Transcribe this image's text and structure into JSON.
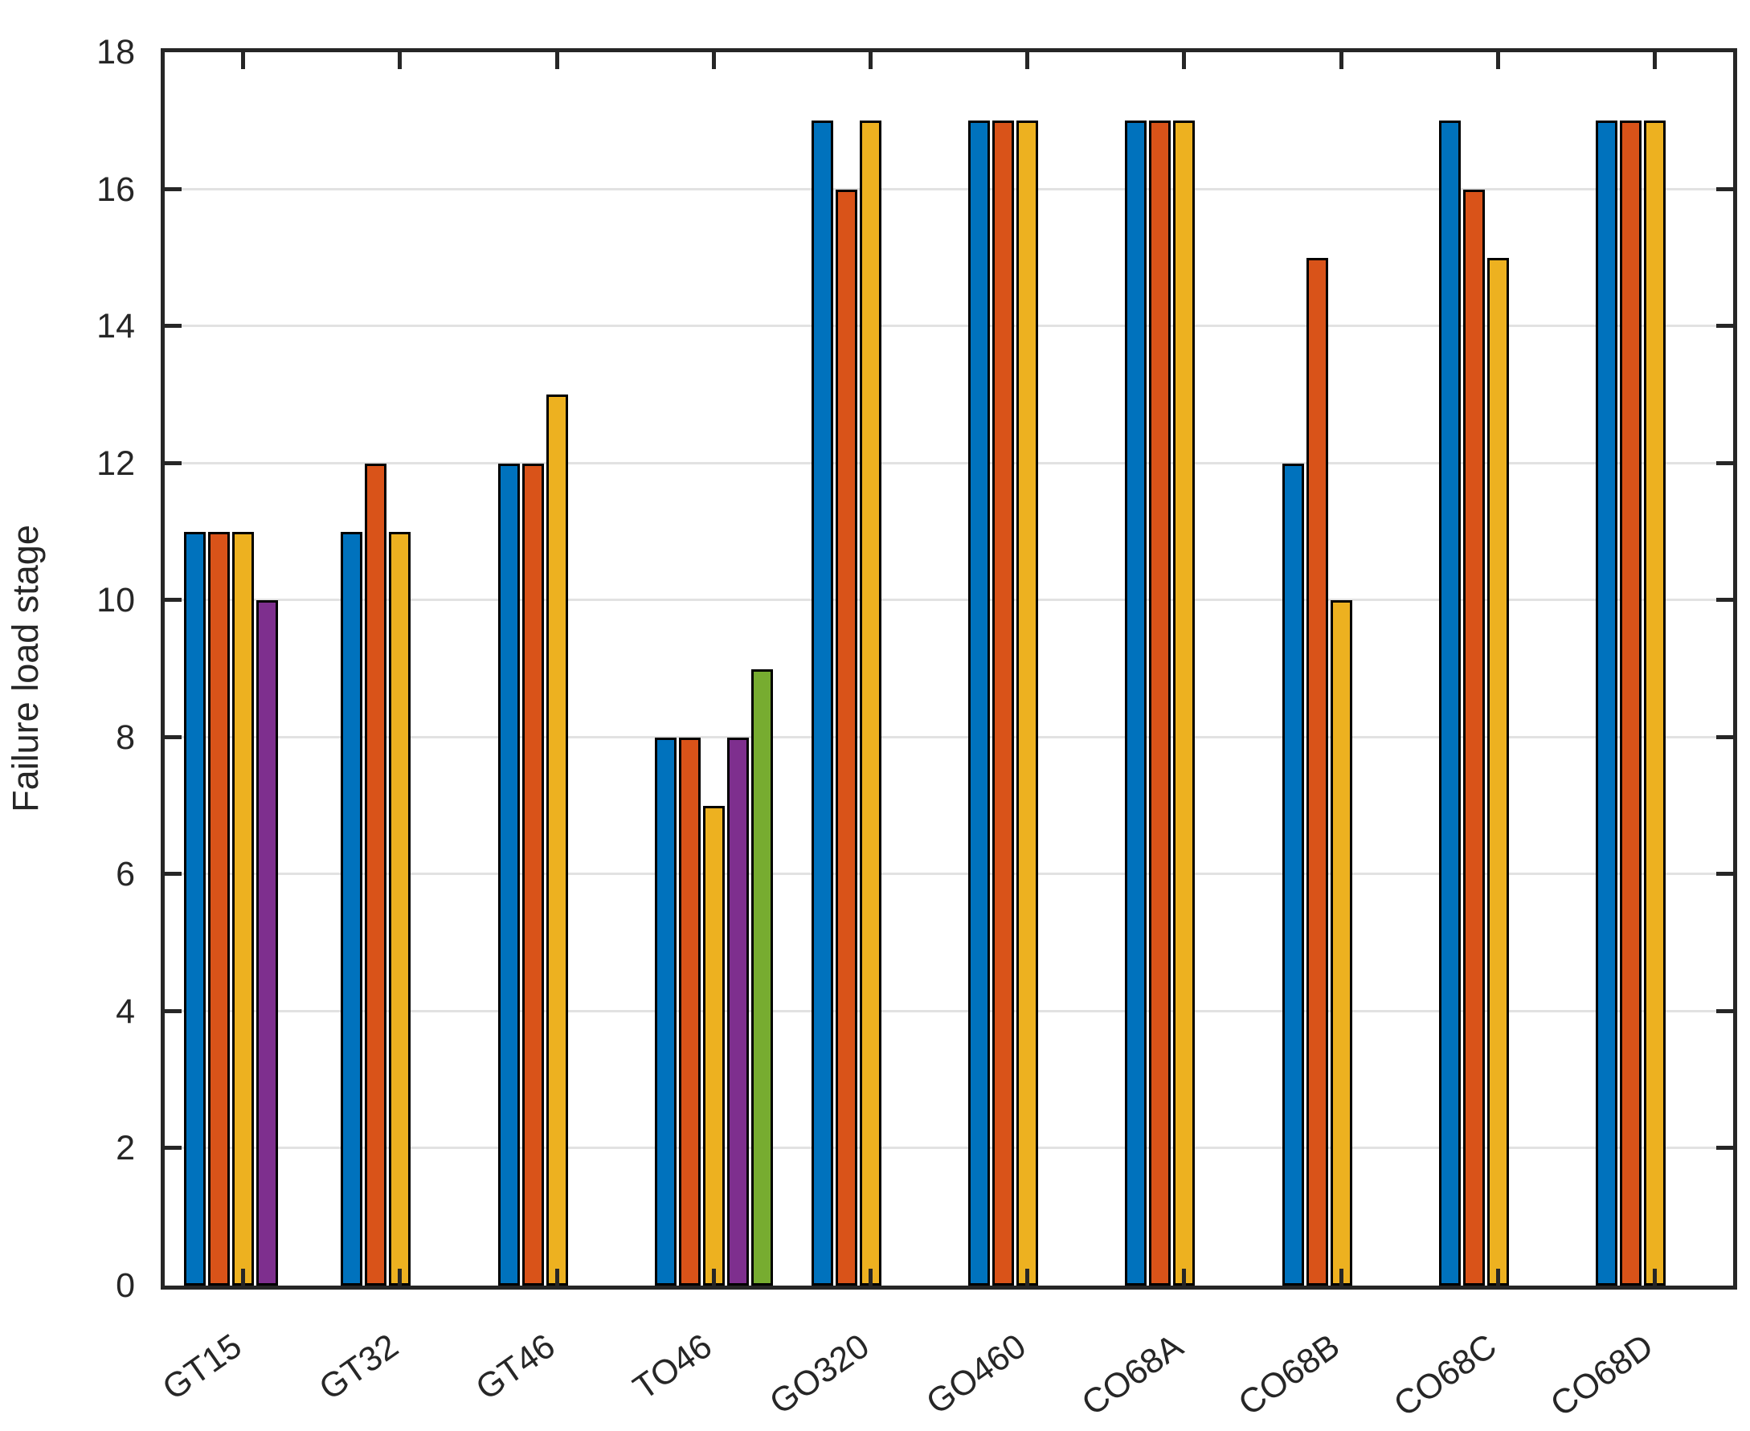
{
  "figure": {
    "background_color": "#ffffff",
    "axis_color": "#262626",
    "grid_color": "#e2e2e2",
    "bar_edge_color": "#000000",
    "ylabel": "Failure load stage"
  },
  "chart_data": {
    "type": "bar",
    "title": "",
    "xlabel": "",
    "ylabel": "Failure load stage",
    "ylim": [
      0,
      18
    ],
    "yticks": [
      0,
      2,
      4,
      6,
      8,
      10,
      12,
      14,
      16,
      18
    ],
    "grid": "horizontal-y",
    "legend_position": "none",
    "xtick_angle_deg": 35,
    "categories": [
      "GT15",
      "GT32",
      "GT46",
      "TO46",
      "GO320",
      "GO460",
      "CO68A",
      "CO68B",
      "CO68C",
      "CO68D"
    ],
    "series": [
      {
        "name": "series-1-blue",
        "color": "#0072BD",
        "values": [
          11,
          11,
          12,
          8,
          17,
          17,
          17,
          12,
          17,
          17
        ]
      },
      {
        "name": "series-2-orange",
        "color": "#D95319",
        "values": [
          11,
          12,
          12,
          8,
          16,
          17,
          17,
          15,
          16,
          17
        ]
      },
      {
        "name": "series-3-yellow",
        "color": "#EDB120",
        "values": [
          11,
          11,
          13,
          7,
          17,
          17,
          17,
          10,
          15,
          17
        ]
      },
      {
        "name": "series-4-purple",
        "color": "#7E2F8E",
        "values": [
          10,
          null,
          null,
          8,
          null,
          null,
          null,
          null,
          null,
          null
        ]
      },
      {
        "name": "series-5-green",
        "color": "#77AC30",
        "values": [
          null,
          null,
          null,
          9,
          null,
          null,
          null,
          null,
          null,
          null
        ]
      }
    ]
  }
}
